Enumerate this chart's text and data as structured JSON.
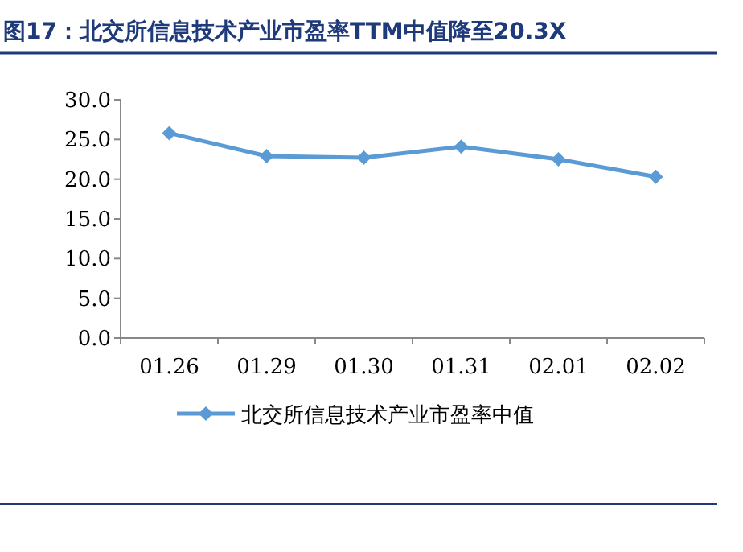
{
  "chart_data": {
    "type": "line",
    "title": "图17：北交所信息技术产业市盈率TTM中值降至20.3X",
    "categories": [
      "01.26",
      "01.29",
      "01.30",
      "01.31",
      "02.01",
      "02.02"
    ],
    "series": [
      {
        "name": "北交所信息技术产业市盈率中值",
        "color": "#5b9bd5",
        "values": [
          25.8,
          22.9,
          22.7,
          24.1,
          22.5,
          20.3
        ]
      }
    ],
    "ylim": [
      0,
      30
    ],
    "yticks": [
      {
        "value": 0,
        "label": "0.0"
      },
      {
        "value": 5,
        "label": "5.0"
      },
      {
        "value": 10,
        "label": "10.0"
      },
      {
        "value": 15,
        "label": "15.0"
      },
      {
        "value": 20,
        "label": "20.0"
      },
      {
        "value": 25,
        "label": "25.0"
      },
      {
        "value": 30,
        "label": "30.0"
      }
    ],
    "legend": "bottom",
    "marker": "diamond",
    "line_style": "solid"
  }
}
